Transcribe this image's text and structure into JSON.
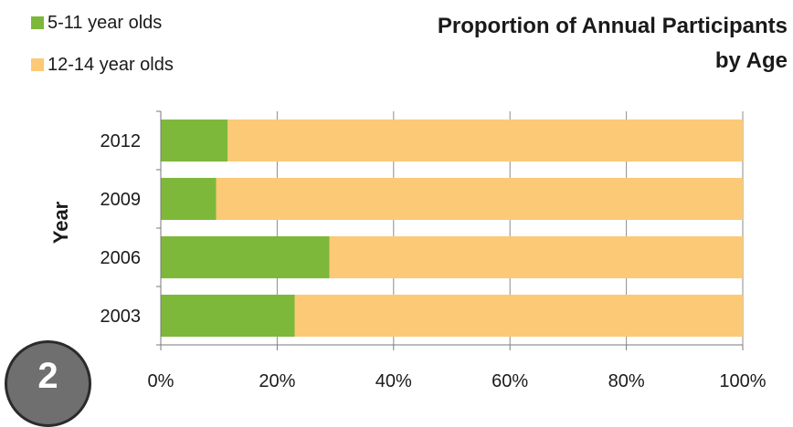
{
  "chart_data": {
    "type": "bar",
    "orientation": "horizontal",
    "stacked": true,
    "title": "Proportion of Annual Participants by Age",
    "title_lines": [
      "Proportion of Annual Participants",
      "by Age"
    ],
    "ylabel": "Year",
    "xlabel": "",
    "categories": [
      "2012",
      "2009",
      "2006",
      "2003"
    ],
    "series": [
      {
        "name": "5-11 year olds",
        "color": "#7db83a",
        "values": [
          11.5,
          9.5,
          29,
          23
        ]
      },
      {
        "name": "12-14 year olds",
        "color": "#fcc976",
        "values": [
          88.5,
          90.5,
          71,
          77
        ]
      }
    ],
    "xlim": [
      0,
      100
    ],
    "xticks": [
      "0%",
      "20%",
      "40%",
      "60%",
      "80%",
      "100%"
    ],
    "xtick_values": [
      0,
      20,
      40,
      60,
      80,
      100
    ],
    "grid": true,
    "legend_position": "top-left"
  },
  "badge": {
    "label": "2"
  }
}
